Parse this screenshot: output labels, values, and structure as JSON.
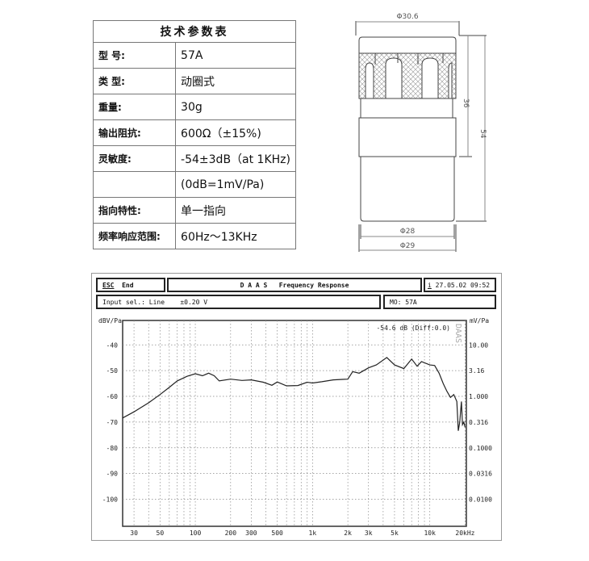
{
  "spec_table": {
    "title": "技术参数表",
    "rows": [
      {
        "label": "型 号:",
        "value": "57A"
      },
      {
        "label": "类 型:",
        "value": "动圈式"
      },
      {
        "label": "重量:",
        "value": "30g"
      },
      {
        "label": "输出阻抗:",
        "value": "600Ω（±15%)"
      },
      {
        "label": "灵敏度:",
        "value": "-54±3dB（at 1KHz)"
      },
      {
        "label": "",
        "value": "(0dB=1mV/Pa)"
      },
      {
        "label": "指向特性:",
        "value": "单一指向"
      },
      {
        "label": "频率响应范围:",
        "value": "60Hz～13KHz"
      }
    ]
  },
  "drawing": {
    "dim_top": "Φ30.6",
    "dim_height_head": "36",
    "dim_height_total": "54",
    "dim_bottom_inner": "Φ28",
    "dim_bottom_outer": "Φ29"
  },
  "analyzer": {
    "esc_label": "ESC",
    "end_label": "End",
    "title": "D A A S   Frequency Response",
    "info_icon": "i",
    "datetime": "27.05.02 09:52",
    "input_sel": "Input sel.: Line",
    "input_range": "±0.20 V",
    "model": "MO: 57A",
    "readout": "-54.6 dB (Diff:0.0)",
    "watermark": "DAAS"
  },
  "chart_data": {
    "type": "line",
    "title": "Frequency Response",
    "xlabel": "kHz",
    "ylabel": "dBV/Pa",
    "ylabel_right": "mV/Pa",
    "xscale": "log",
    "xlim": [
      24,
      20500
    ],
    "ylim": [
      -110.5,
      -30.5
    ],
    "grid": true,
    "x_ticks": [
      30,
      50,
      100,
      200,
      300,
      500,
      1000,
      2000,
      3000,
      5000,
      10000,
      20000
    ],
    "x_tick_labels": [
      "30",
      "50",
      "100",
      "200",
      "300",
      "500",
      "1k",
      "2k",
      "3k",
      "5k",
      "10k",
      "20kHz"
    ],
    "y_ticks": [
      -40,
      -50,
      -60,
      -70,
      -80,
      -90,
      -100
    ],
    "y_tick_labels": [
      "-40",
      "-50",
      "-60",
      "-70",
      "-80",
      "-90",
      "-100"
    ],
    "y_right_tick_labels": [
      "10.00",
      "3.16",
      "1.000",
      "0.316",
      "0.1000",
      "0.0316",
      "0.0100"
    ],
    "line_color": "#222222",
    "x": [
      24,
      30,
      40,
      50,
      60,
      70,
      85,
      100,
      115,
      130,
      145,
      160,
      200,
      250,
      300,
      380,
      450,
      500,
      600,
      750,
      900,
      1000,
      1200,
      1500,
      1800,
      2000,
      2200,
      2500,
      3000,
      3500,
      4300,
      5000,
      6000,
      7000,
      7800,
      8500,
      10000,
      11000,
      12000,
      13000,
      14000,
      15000,
      16000,
      17000,
      17500,
      18000,
      18300,
      18600,
      19000,
      19500,
      20000
    ],
    "y": [
      -68.4,
      -66,
      -62.5,
      -59.3,
      -56.5,
      -54,
      -52.2,
      -51.2,
      -52,
      -51,
      -52,
      -54,
      -53.3,
      -53.8,
      -53.6,
      -54.5,
      -55.7,
      -54.4,
      -55.9,
      -55.8,
      -54.5,
      -54.8,
      -54.3,
      -53.6,
      -53.4,
      -53.3,
      -50.4,
      -51,
      -48.9,
      -47.8,
      -44.9,
      -47.8,
      -49.2,
      -45.5,
      -48.3,
      -46.5,
      -47.8,
      -48,
      -51,
      -55,
      -58,
      -60.4,
      -59.3,
      -62,
      -73.4,
      -70,
      -66,
      -62,
      -71,
      -70,
      -72
    ]
  }
}
